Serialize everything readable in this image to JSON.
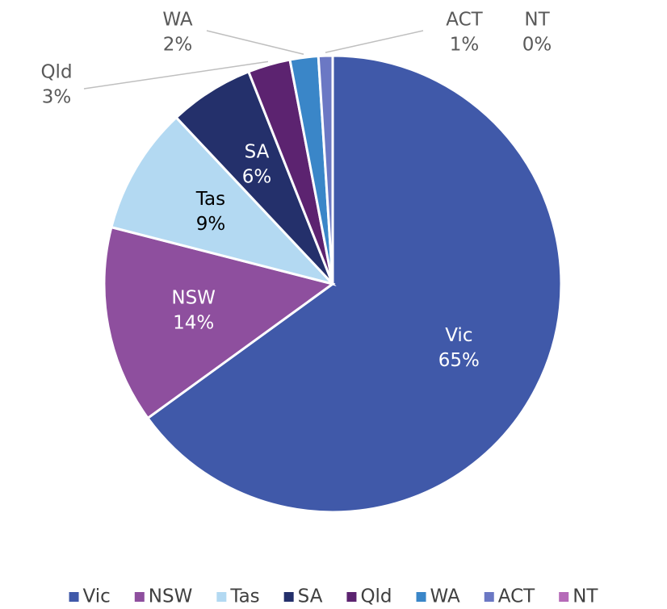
{
  "chart_data": {
    "type": "pie",
    "categories": [
      "Vic",
      "NSW",
      "Tas",
      "SA",
      "Qld",
      "WA",
      "ACT",
      "NT"
    ],
    "values": [
      65,
      14,
      9,
      6,
      3,
      2,
      1,
      0
    ],
    "value_labels": [
      "65%",
      "14%",
      "9%",
      "6%",
      "3%",
      "2%",
      "1%",
      "0%"
    ],
    "colors": [
      "#4059a9",
      "#8e4f9e",
      "#b3d9f2",
      "#24306b",
      "#5c2370",
      "#3a86c8",
      "#6b78c4",
      "#b56ab8"
    ],
    "legend": "bottom"
  }
}
